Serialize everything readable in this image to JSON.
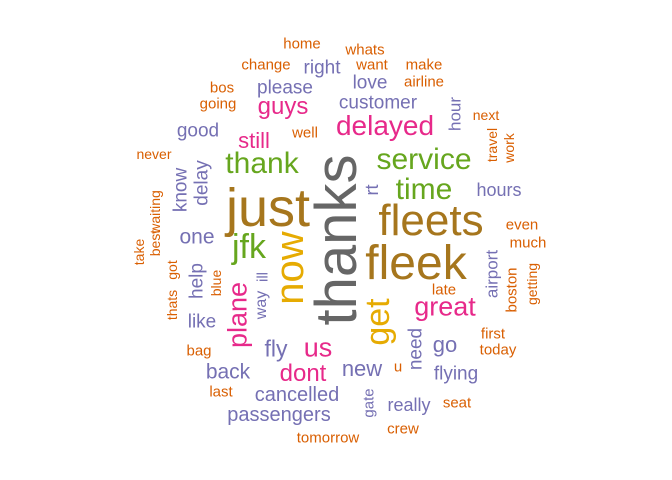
{
  "words": [
    {
      "text": "home"
    },
    {
      "text": "whats"
    },
    {
      "text": "change"
    },
    {
      "text": "right"
    },
    {
      "text": "want"
    },
    {
      "text": "make"
    },
    {
      "text": "bos"
    },
    {
      "text": "please"
    },
    {
      "text": "love"
    },
    {
      "text": "airline"
    },
    {
      "text": "going"
    },
    {
      "text": "guys"
    },
    {
      "text": "customer"
    },
    {
      "text": "hour"
    },
    {
      "text": "next"
    },
    {
      "text": "good"
    },
    {
      "text": "well"
    },
    {
      "text": "delayed"
    },
    {
      "text": "travel"
    },
    {
      "text": "work"
    },
    {
      "text": "still"
    },
    {
      "text": "never"
    },
    {
      "text": "thank"
    },
    {
      "text": "service"
    },
    {
      "text": "know"
    },
    {
      "text": "delay"
    },
    {
      "text": "time"
    },
    {
      "text": "hours"
    },
    {
      "text": "waiting"
    },
    {
      "text": "just"
    },
    {
      "text": "thanks"
    },
    {
      "text": "rt"
    },
    {
      "text": "fleets"
    },
    {
      "text": "best"
    },
    {
      "text": "take"
    },
    {
      "text": "even"
    },
    {
      "text": "one"
    },
    {
      "text": "jfk"
    },
    {
      "text": "now"
    },
    {
      "text": "much"
    },
    {
      "text": "got"
    },
    {
      "text": "fleek"
    },
    {
      "text": "airport"
    },
    {
      "text": "getting"
    },
    {
      "text": "help"
    },
    {
      "text": "ill"
    },
    {
      "text": "boston"
    },
    {
      "text": "late"
    },
    {
      "text": "thats"
    },
    {
      "text": "blue"
    },
    {
      "text": "get"
    },
    {
      "text": "great"
    },
    {
      "text": "way"
    },
    {
      "text": "like"
    },
    {
      "text": "plane"
    },
    {
      "text": "first"
    },
    {
      "text": "need"
    },
    {
      "text": "today"
    },
    {
      "text": "fly"
    },
    {
      "text": "us"
    },
    {
      "text": "go"
    },
    {
      "text": "bag"
    },
    {
      "text": "dont"
    },
    {
      "text": "new"
    },
    {
      "text": "u"
    },
    {
      "text": "flying"
    },
    {
      "text": "back"
    },
    {
      "text": "last"
    },
    {
      "text": "cancelled"
    },
    {
      "text": "gate"
    },
    {
      "text": "seat"
    },
    {
      "text": "really"
    },
    {
      "text": "passengers"
    },
    {
      "text": "crew"
    },
    {
      "text": "tomorrow"
    }
  ]
}
